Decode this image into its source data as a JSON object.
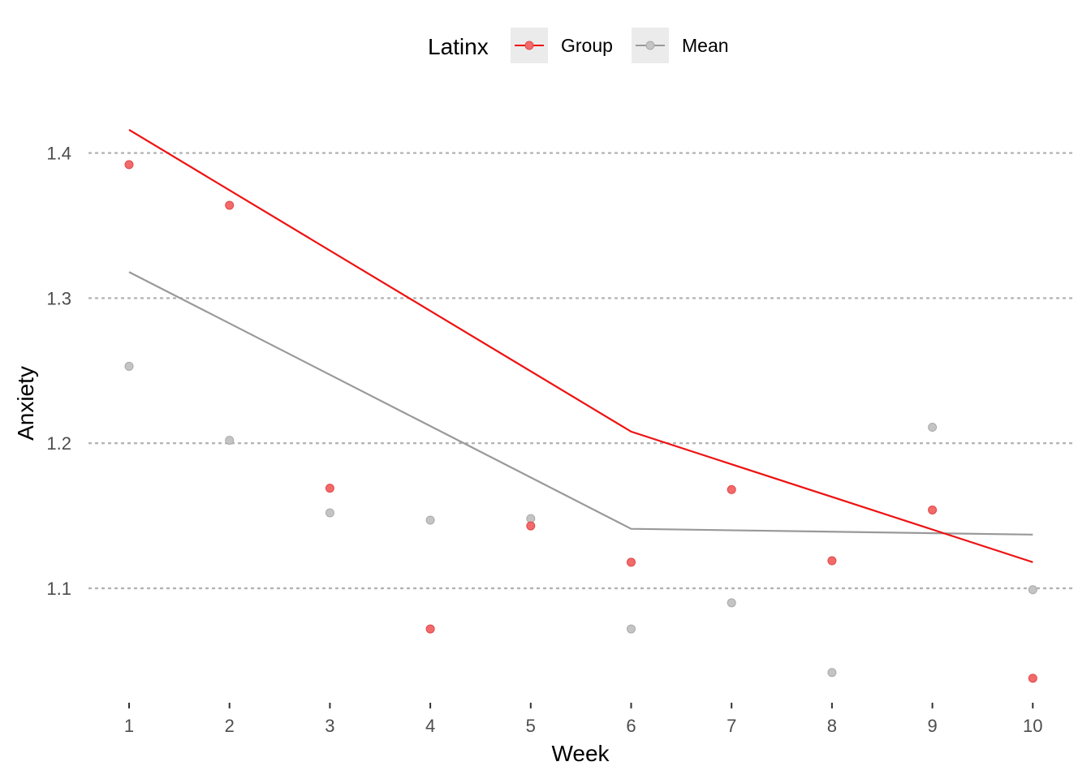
{
  "chart_data": {
    "type": "line",
    "title": "",
    "xlabel": "Week",
    "ylabel": "Anxiety",
    "x": [
      1,
      2,
      3,
      4,
      5,
      6,
      7,
      8,
      9,
      10
    ],
    "x_ticks": [
      "1",
      "2",
      "3",
      "4",
      "5",
      "6",
      "7",
      "8",
      "9",
      "10"
    ],
    "y_ticks": [
      "1.1",
      "1.2",
      "1.3",
      "1.4"
    ],
    "xlim": [
      0.9,
      10.4
    ],
    "ylim": [
      1.03,
      1.445
    ],
    "grid": "horizontal dotted",
    "legend": {
      "title": "Latinx",
      "position": "top"
    },
    "series": [
      {
        "name": "Group",
        "color": "#ee1111",
        "point_color": "#f36a6a",
        "points": [
          1.392,
          1.364,
          1.169,
          1.072,
          1.143,
          1.118,
          1.168,
          1.119,
          1.154,
          1.038
        ],
        "line_x": [
          1,
          6,
          10
        ],
        "line_y": [
          1.416,
          1.208,
          1.118
        ]
      },
      {
        "name": "Mean",
        "color": "#999999",
        "point_color": "#c4c4c4",
        "points": [
          1.253,
          1.202,
          1.152,
          1.147,
          1.148,
          1.072,
          1.09,
          1.042,
          1.211,
          1.099
        ],
        "line_x": [
          1,
          6,
          10
        ],
        "line_y": [
          1.318,
          1.141,
          1.137
        ]
      }
    ]
  }
}
